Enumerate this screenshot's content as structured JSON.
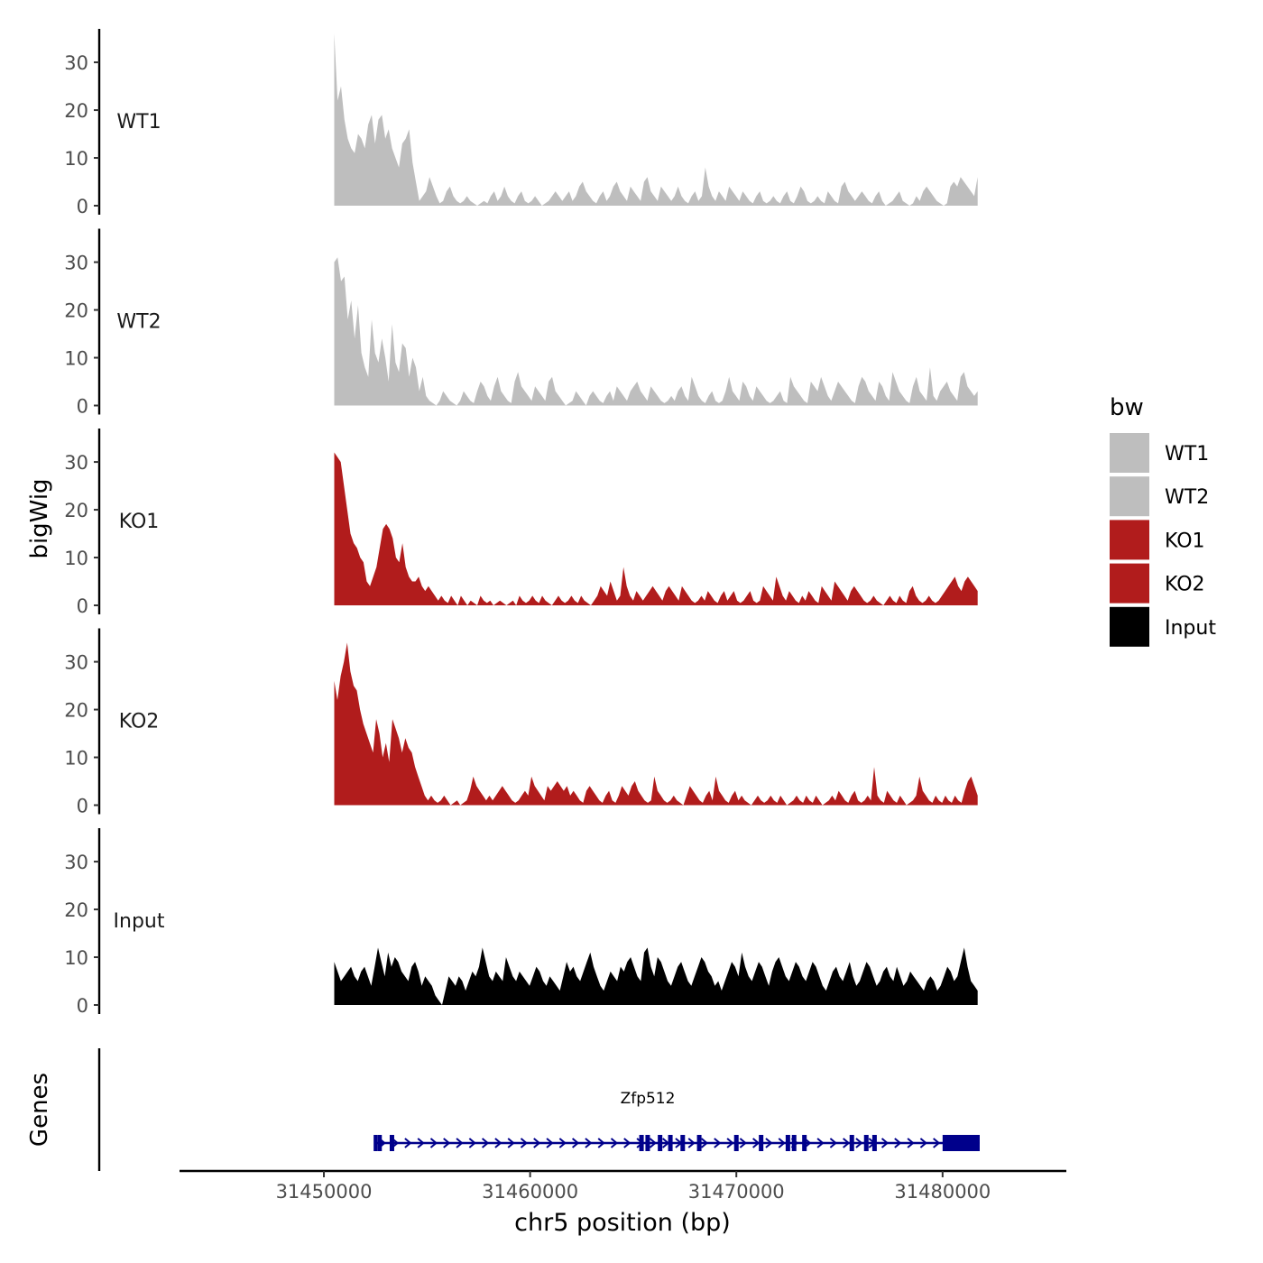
{
  "chart_data": {
    "type": "area",
    "ylabel": "bigWig",
    "xlabel": "chr5 position (bp)",
    "ylim": [
      0,
      37
    ],
    "yticks": [
      0,
      10,
      20,
      30
    ],
    "xlim": [
      31443000,
      31486000
    ],
    "region": [
      31450500,
      31481700
    ],
    "xticks": [
      31450000,
      31460000,
      31470000,
      31480000
    ],
    "xtick_labels": [
      "31450000",
      "31460000",
      "31470000",
      "31480000"
    ],
    "tracks": [
      {
        "name": "WT1",
        "color": "#bebebe",
        "values": [
          36,
          22,
          25,
          18,
          14,
          12,
          11,
          15,
          14,
          12,
          17,
          19,
          13,
          18,
          19,
          14,
          16,
          12,
          10,
          8,
          13,
          14,
          16,
          9,
          5,
          1,
          2,
          3,
          6,
          4,
          2,
          0.5,
          1,
          3,
          4,
          2,
          1,
          0.5,
          1,
          2,
          1,
          0.5,
          0,
          0.5,
          1,
          0.5,
          2,
          3,
          1,
          2,
          4,
          2,
          1,
          0.5,
          2,
          3,
          1,
          0.5,
          1,
          2,
          1,
          0,
          0.5,
          1,
          2,
          3,
          2,
          1,
          2,
          3,
          1,
          2,
          4,
          5,
          3,
          2,
          1,
          0.5,
          2,
          3,
          1,
          2,
          4,
          5,
          3,
          2,
          1,
          4,
          3,
          2,
          1,
          5,
          6,
          3,
          2,
          1,
          4,
          3,
          2,
          1,
          2,
          4,
          2,
          1,
          0.5,
          2,
          3,
          1,
          2,
          8,
          4,
          2,
          1,
          3,
          2,
          1,
          4,
          3,
          2,
          1,
          3,
          2,
          1,
          0.5,
          2,
          3,
          1,
          0.5,
          1,
          2,
          1,
          0.5,
          2,
          3,
          1,
          0.5,
          2,
          4,
          3,
          1,
          0.5,
          1,
          2,
          1,
          0.5,
          3,
          2,
          1,
          0.5,
          4,
          5,
          3,
          2,
          1,
          2,
          3,
          2,
          1,
          0.5,
          2,
          3,
          1,
          0,
          0.5,
          1,
          2,
          3,
          1,
          0.5,
          0,
          0.5,
          2,
          1,
          3,
          4,
          3,
          2,
          1,
          0.5,
          0,
          0.5,
          4,
          5,
          4,
          6,
          5,
          4,
          3,
          2,
          6
        ]
      },
      {
        "name": "WT2",
        "color": "#bebebe",
        "values": [
          30,
          31,
          26,
          27,
          18,
          22,
          14,
          21,
          11,
          8,
          6,
          18,
          11,
          9,
          14,
          10,
          5,
          17,
          9,
          7,
          13,
          12,
          6,
          10,
          8,
          3,
          6,
          2,
          1,
          0.5,
          0,
          1,
          3,
          2,
          1,
          0.5,
          0,
          1,
          3,
          2,
          1,
          0.5,
          3,
          5,
          4,
          2,
          1,
          4,
          6,
          3,
          2,
          1,
          0.5,
          5,
          7,
          4,
          3,
          2,
          1,
          4,
          3,
          2,
          1,
          5,
          6,
          3,
          2,
          1,
          0,
          0.5,
          1,
          3,
          2,
          1,
          0,
          2,
          3,
          2,
          1,
          0.5,
          2,
          3,
          1,
          4,
          3,
          2,
          1,
          3,
          4,
          5,
          3,
          2,
          1,
          4,
          3,
          2,
          1,
          0.5,
          1,
          2,
          1,
          3,
          4,
          2,
          1,
          6,
          4,
          2,
          1,
          0.5,
          2,
          3,
          1,
          0.5,
          1,
          3,
          6,
          3,
          2,
          1,
          5,
          4,
          2,
          1,
          4,
          3,
          2,
          1,
          0.5,
          1,
          2,
          3,
          1,
          0.5,
          6,
          4,
          3,
          2,
          1,
          0.5,
          5,
          4,
          3,
          6,
          4,
          2,
          1,
          3,
          5,
          4,
          3,
          2,
          1,
          0.5,
          4,
          6,
          5,
          3,
          2,
          1,
          5,
          4,
          2,
          1,
          7,
          5,
          3,
          2,
          1,
          0.5,
          4,
          6,
          3,
          2,
          1,
          8,
          2,
          1,
          3,
          4,
          5,
          3,
          2,
          1,
          6,
          7,
          4,
          3,
          2,
          3
        ]
      },
      {
        "name": "KO1",
        "color": "#b11c1c",
        "values": [
          32,
          31,
          30,
          25,
          20,
          15,
          13,
          12,
          10,
          9,
          5,
          4,
          6,
          8,
          12,
          16,
          17,
          16,
          14,
          10,
          9,
          13,
          8,
          6,
          5,
          5,
          6,
          4,
          3,
          4,
          3,
          2,
          1,
          2,
          1,
          0.5,
          2,
          1,
          0,
          2,
          1,
          0,
          1,
          0.5,
          0,
          2,
          1,
          0.5,
          1,
          0,
          0.5,
          1,
          0.5,
          0,
          0.5,
          1,
          0,
          2,
          1,
          0.5,
          1,
          2,
          1,
          0.5,
          2,
          1,
          0.5,
          0,
          1,
          2,
          1,
          0.5,
          1,
          2,
          1,
          0.5,
          2,
          1,
          0.5,
          0,
          1,
          2,
          4,
          3,
          2,
          5,
          3,
          1,
          2,
          8,
          4,
          2,
          1,
          3,
          2,
          1,
          2,
          3,
          4,
          3,
          2,
          1,
          3,
          4,
          3,
          2,
          1,
          4,
          3,
          2,
          1,
          0.5,
          1,
          2,
          1,
          3,
          2,
          1,
          0.5,
          2,
          3,
          1,
          2,
          3,
          1,
          0.5,
          1,
          2,
          3,
          1,
          0.5,
          1,
          4,
          3,
          2,
          1,
          6,
          4,
          2,
          1,
          3,
          2,
          1,
          0.5,
          2,
          1,
          3,
          2,
          1,
          0.5,
          4,
          3,
          2,
          1,
          5,
          4,
          3,
          2,
          1,
          3,
          4,
          3,
          2,
          1,
          0.5,
          1,
          2,
          1,
          0.5,
          0,
          1,
          2,
          1,
          0.5,
          2,
          1,
          0.5,
          3,
          4,
          2,
          1,
          0.5,
          1,
          2,
          1,
          0.5,
          1,
          2,
          3,
          4,
          5,
          6,
          4,
          3,
          5,
          6,
          5,
          4,
          3
        ]
      },
      {
        "name": "KO2",
        "color": "#b11c1c",
        "values": [
          26,
          22,
          27,
          30,
          34,
          28,
          25,
          24,
          20,
          17,
          15,
          13,
          11,
          18,
          15,
          10,
          13,
          9,
          18,
          16,
          14,
          11,
          14,
          12,
          11,
          8,
          6,
          4,
          2,
          1,
          2,
          1,
          0.5,
          1,
          2,
          1,
          0,
          0.5,
          1,
          0,
          0.5,
          1,
          3,
          6,
          4,
          3,
          2,
          1,
          2,
          1,
          2,
          3,
          4,
          3,
          2,
          1,
          0.5,
          1,
          2,
          3,
          2,
          6,
          4,
          3,
          2,
          1,
          4,
          3,
          4,
          5,
          4,
          3,
          4,
          2,
          3,
          2,
          1,
          0.5,
          3,
          4,
          3,
          2,
          1,
          0.5,
          2,
          3,
          1,
          0.5,
          2,
          4,
          3,
          2,
          4,
          5,
          3,
          2,
          1,
          0.5,
          1,
          6,
          3,
          2,
          1,
          0.5,
          1,
          2,
          1,
          0.5,
          0,
          2,
          4,
          3,
          2,
          1,
          0.5,
          2,
          3,
          1,
          6,
          3,
          2,
          1,
          0.5,
          2,
          3,
          1,
          2,
          1,
          0.5,
          0,
          1,
          2,
          1,
          0.5,
          1,
          2,
          1,
          0.5,
          2,
          1,
          0,
          0.5,
          1,
          2,
          1,
          0.5,
          2,
          1,
          0.5,
          2,
          1,
          0,
          0.5,
          1,
          2,
          1,
          3,
          2,
          1,
          0.5,
          2,
          3,
          1,
          0.5,
          1,
          2,
          1,
          8,
          2,
          1,
          0.5,
          3,
          2,
          1,
          0.5,
          2,
          1,
          0,
          0.5,
          1,
          2,
          6,
          3,
          2,
          1,
          0.5,
          2,
          1,
          0.5,
          2,
          1,
          0.5,
          2,
          1,
          0.5,
          3,
          5,
          6,
          4,
          2
        ]
      },
      {
        "name": "Input",
        "color": "#000000",
        "values": [
          9,
          7,
          5,
          6,
          7,
          8,
          6,
          5,
          7,
          8,
          6,
          4,
          8,
          12,
          9,
          6,
          11,
          8,
          10,
          9,
          7,
          6,
          5,
          8,
          9,
          7,
          4,
          6,
          5,
          4,
          2,
          1,
          0,
          3,
          6,
          5,
          4,
          6,
          5,
          3,
          5,
          7,
          6,
          8,
          12,
          9,
          6,
          5,
          7,
          6,
          5,
          10,
          8,
          6,
          5,
          7,
          6,
          5,
          4,
          6,
          8,
          7,
          5,
          4,
          6,
          5,
          4,
          3,
          6,
          9,
          7,
          8,
          6,
          5,
          7,
          9,
          11,
          8,
          6,
          4,
          3,
          5,
          7,
          6,
          5,
          8,
          7,
          9,
          10,
          8,
          6,
          5,
          11,
          12,
          8,
          6,
          10,
          9,
          7,
          5,
          4,
          6,
          8,
          9,
          7,
          5,
          4,
          6,
          8,
          10,
          9,
          7,
          6,
          4,
          5,
          3,
          5,
          7,
          9,
          8,
          6,
          11,
          8,
          6,
          5,
          7,
          9,
          8,
          6,
          4,
          7,
          9,
          10,
          8,
          6,
          5,
          7,
          9,
          8,
          6,
          5,
          7,
          9,
          8,
          6,
          4,
          3,
          5,
          7,
          8,
          6,
          5,
          7,
          9,
          6,
          4,
          5,
          7,
          9,
          8,
          6,
          4,
          5,
          7,
          8,
          6,
          5,
          8,
          6,
          4,
          5,
          7,
          6,
          5,
          4,
          3,
          5,
          6,
          5,
          3,
          4,
          6,
          8,
          7,
          5,
          6,
          9,
          12,
          8,
          5,
          4,
          3
        ]
      }
    ],
    "genes": {
      "label": "Genes",
      "name": "Zfp512",
      "color": "#00008b",
      "start": 31452500,
      "end": 31481800,
      "utr_start": 31480000,
      "exons": [
        31452700,
        31453300,
        31465400,
        31465700,
        31466300,
        31466800,
        31467400,
        31468200,
        31470000,
        31471200,
        31472500,
        31472800,
        31473300,
        31475600,
        31476300,
        31476700
      ]
    },
    "legend": {
      "title": "bw",
      "position": "right",
      "entries": [
        {
          "label": "WT1",
          "color": "#bebebe"
        },
        {
          "label": "WT2",
          "color": "#bebebe"
        },
        {
          "label": "KO1",
          "color": "#b11c1c"
        },
        {
          "label": "KO2",
          "color": "#b11c1c"
        },
        {
          "label": "Input",
          "color": "#000000"
        }
      ]
    }
  }
}
